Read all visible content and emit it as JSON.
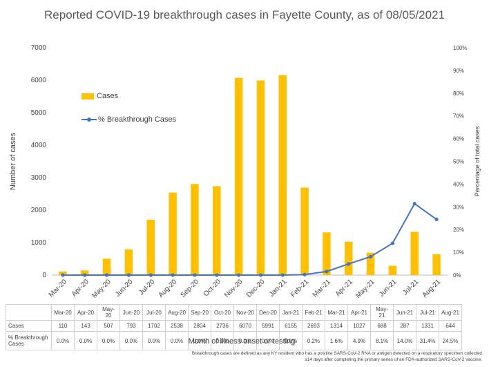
{
  "title": "Reported COVID-19 breakthrough cases in Fayette County, as of 08/05/2021",
  "legend": {
    "cases": "Cases",
    "pct": "% Breakthrough Cases"
  },
  "table": {
    "row_cases": "Cases",
    "row_pct": "% Breakthrough Cases"
  },
  "x_axis_title": "Month of illness onset or testing",
  "footnote": "Breakthrough cases are defined as any KY resident who has a positive SARS-CoV-2 RNA or antigen detected on a respiratory specimen collected ≥14 days after completing the primary series of an FDA-authorized SARS-CoV-2 vaccine.",
  "colors": {
    "bar": "#FFC000",
    "line": "#4472C4",
    "axis": "#bfbfbf"
  },
  "chart_data": {
    "type": "bar",
    "title": "Reported COVID-19 breakthrough cases in Fayette County, as of 08/05/2021",
    "xlabel": "Month of illness onset or testing",
    "ylabel": "Number of cases",
    "y2label": "Percentage of total cases",
    "categories": [
      "Mar-20",
      "Apr-20",
      "May-20",
      "Jun-20",
      "Jul-20",
      "Aug-20",
      "Sep-20",
      "Oct-20",
      "Nov-20",
      "Dec-20",
      "Jan-21",
      "Feb-21",
      "Mar-21",
      "Apr-21",
      "May-21",
      "Jun-21",
      "Jul-21",
      "Aug-21"
    ],
    "table_categories": [
      "Mar-20",
      "Apr-20",
      "May-\n20",
      "Jun-20",
      "Jul-20",
      "Aug-20",
      "Sep-20",
      "Oct-20",
      "Nov-20",
      "Dec-20",
      "Jan-21",
      "Feb-21",
      "Mar-21",
      "Apr-21",
      "May-\n21",
      "Jun-21",
      "Jul-21",
      "Aug-21"
    ],
    "series": [
      {
        "name": "Cases",
        "type": "bar",
        "axis": "left",
        "values": [
          110,
          143,
          507,
          793,
          1702,
          2538,
          2804,
          2736,
          6070,
          5991,
          6155,
          2693,
          1314,
          1027,
          688,
          287,
          1331,
          644
        ]
      },
      {
        "name": "% Breakthrough Cases",
        "type": "line",
        "axis": "right",
        "values": [
          0.0,
          0.0,
          0.0,
          0.0,
          0.0,
          0.0,
          0.0,
          0.0,
          0.0,
          0.0,
          0.0,
          0.2,
          1.6,
          4.9,
          8.1,
          14.0,
          31.4,
          24.5
        ],
        "labels": [
          "0.0%",
          "0.0%",
          "0.0%",
          "0.0%",
          "0.0%",
          "0.0%",
          "0.0%",
          "0.0%",
          "0.0%",
          "0.0%",
          "0.0%",
          "0.2%",
          "1.6%",
          "4.9%",
          "8.1%",
          "14.0%",
          "31.4%",
          "24.5%"
        ]
      }
    ],
    "ylim": [
      0,
      7000
    ],
    "yticks": [
      "0",
      "1000",
      "2000",
      "3000",
      "4000",
      "5000",
      "6000",
      "7000"
    ],
    "y2lim": [
      0,
      100
    ],
    "y2ticks": [
      "0%",
      "10%",
      "20%",
      "30%",
      "40%",
      "50%",
      "60%",
      "70%",
      "80%",
      "90%",
      "100%"
    ],
    "legend_position": "top-left",
    "grid": false
  }
}
